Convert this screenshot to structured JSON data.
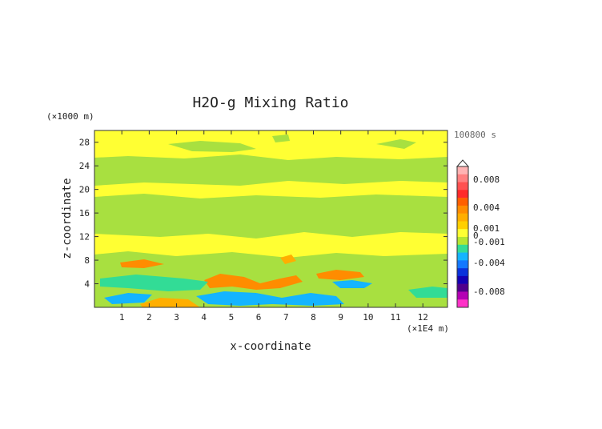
{
  "chart_data": {
    "type": "heatmap",
    "title": "H2O-g Mixing Ratio",
    "xlabel": "x-coordinate",
    "ylabel": "z-coordinate",
    "x_unit": "(×1E4 m)",
    "y_unit": "(×1000 m)",
    "time_label": "100800 s",
    "xlim": [
      0,
      12.9
    ],
    "ylim": [
      0,
      30
    ],
    "x_ticks": [
      1,
      2,
      3,
      4,
      5,
      6,
      7,
      8,
      9,
      10,
      11,
      12
    ],
    "y_ticks": [
      4,
      8,
      12,
      16,
      20,
      24,
      28
    ],
    "grid": false,
    "background_level": "0 to 0.001 (yellow)",
    "colorbar": {
      "labels": [
        "0.008",
        "0.004",
        "0.001",
        "0",
        "-0.001",
        "-0.004",
        "-0.008"
      ],
      "colors": [
        "#ffb3b3",
        "#ff8080",
        "#ff5050",
        "#ff2a2a",
        "#ff5f00",
        "#ff8c00",
        "#ffae00",
        "#ffd000",
        "#ffff33",
        "#b4e632",
        "#32dc96",
        "#14b4ff",
        "#1478ff",
        "#0a32dc",
        "#1400b4",
        "#50008c",
        "#b400b4",
        "#ff32c8"
      ]
    },
    "regions": [
      {
        "level": "-0.001 to 0",
        "color": "#a8e040",
        "description": "upper band",
        "z_range": [
          21.5,
          26
        ],
        "x_range": [
          0,
          12.9
        ]
      },
      {
        "level": "-0.001 to 0",
        "color": "#a8e040",
        "description": "mid band",
        "z_range": [
          12,
          18.5
        ],
        "x_range": [
          0,
          12.9
        ]
      },
      {
        "level": "-0.001 to 0",
        "color": "#a8e040",
        "description": "lower band",
        "z_range": [
          2,
          9
        ],
        "x_range": [
          0,
          12.9
        ]
      },
      {
        "level": "-0.004 to -0.001",
        "color": "#14b4ff",
        "description": "low-level dry pockets",
        "z_range": [
          0.3,
          5
        ],
        "x_range": [
          0.8,
          10.3
        ]
      },
      {
        "level": "0.001 to 0.004",
        "color": "#ff8c00",
        "description": "moist pockets",
        "z_range": [
          0,
          7.5
        ],
        "x_range": [
          1.5,
          9.6
        ]
      }
    ]
  }
}
